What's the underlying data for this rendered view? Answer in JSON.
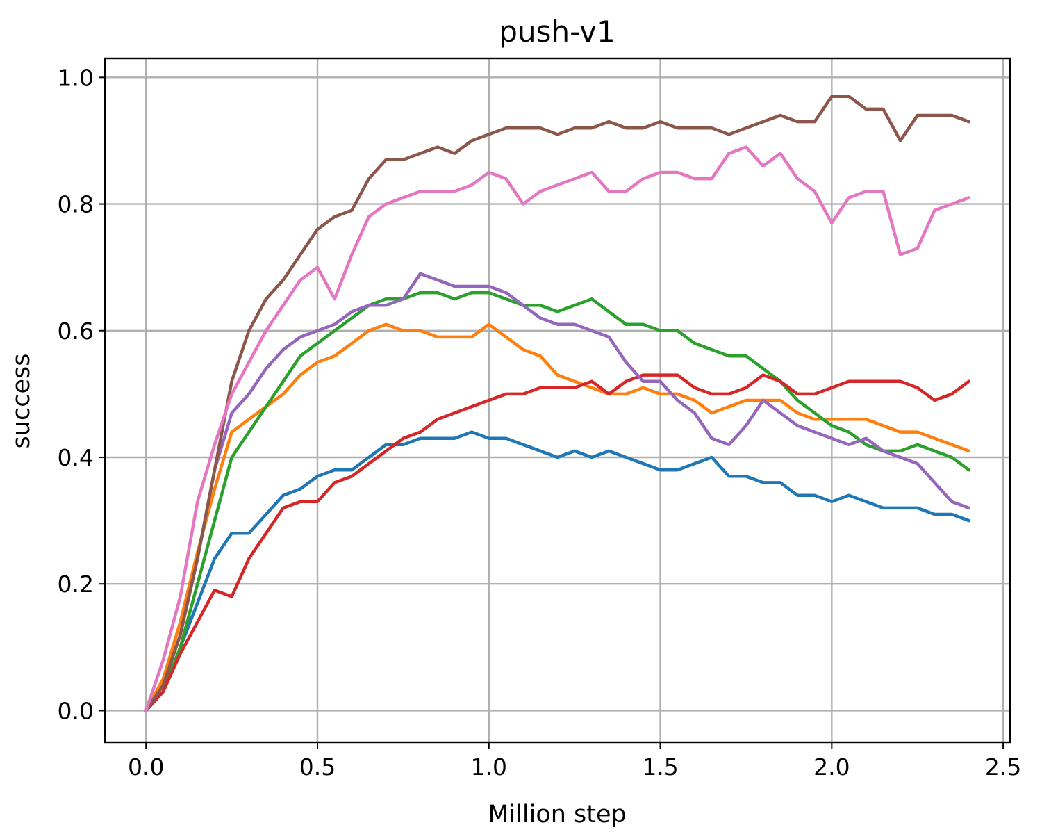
{
  "chart_data": {
    "type": "line",
    "title": "push-v1",
    "xlabel": "Million step",
    "ylabel": "success",
    "xlim": [
      -0.12,
      2.52
    ],
    "ylim": [
      -0.05,
      1.03
    ],
    "grid": true,
    "legend": "none",
    "xticks": [
      {
        "value": 0.0,
        "label": "0.0"
      },
      {
        "value": 0.5,
        "label": "0.5"
      },
      {
        "value": 1.0,
        "label": "1.0"
      },
      {
        "value": 1.5,
        "label": "1.5"
      },
      {
        "value": 2.0,
        "label": "2.0"
      },
      {
        "value": 2.5,
        "label": "2.5"
      }
    ],
    "yticks": [
      {
        "value": 0.0,
        "label": "0.0"
      },
      {
        "value": 0.2,
        "label": "0.2"
      },
      {
        "value": 0.4,
        "label": "0.4"
      },
      {
        "value": 0.6,
        "label": "0.6"
      },
      {
        "value": 0.8,
        "label": "0.8"
      },
      {
        "value": 1.0,
        "label": "1.0"
      }
    ],
    "x": [
      0.0,
      0.05,
      0.1,
      0.15,
      0.2,
      0.25,
      0.3,
      0.35,
      0.4,
      0.45,
      0.5,
      0.55,
      0.6,
      0.65,
      0.7,
      0.75,
      0.8,
      0.85,
      0.9,
      0.95,
      1.0,
      1.05,
      1.1,
      1.15,
      1.2,
      1.25,
      1.3,
      1.35,
      1.4,
      1.45,
      1.5,
      1.55,
      1.6,
      1.65,
      1.7,
      1.75,
      1.8,
      1.85,
      1.9,
      1.95,
      2.0,
      2.05,
      2.1,
      2.15,
      2.2,
      2.25,
      2.3,
      2.35,
      2.4
    ],
    "series": [
      {
        "color": "#1f77b4",
        "values": [
          0.0,
          0.03,
          0.1,
          0.17,
          0.24,
          0.28,
          0.28,
          0.31,
          0.34,
          0.35,
          0.37,
          0.38,
          0.38,
          0.4,
          0.42,
          0.42,
          0.43,
          0.43,
          0.43,
          0.44,
          0.43,
          0.43,
          0.42,
          0.41,
          0.4,
          0.41,
          0.4,
          0.41,
          0.4,
          0.39,
          0.38,
          0.38,
          0.39,
          0.4,
          0.37,
          0.37,
          0.36,
          0.36,
          0.34,
          0.34,
          0.33,
          0.34,
          0.33,
          0.32,
          0.32,
          0.32,
          0.31,
          0.31,
          0.3
        ]
      },
      {
        "color": "#ff7f0e",
        "values": [
          0.0,
          0.05,
          0.14,
          0.25,
          0.35,
          0.44,
          0.46,
          0.48,
          0.5,
          0.53,
          0.55,
          0.56,
          0.58,
          0.6,
          0.61,
          0.6,
          0.6,
          0.59,
          0.59,
          0.59,
          0.61,
          0.59,
          0.57,
          0.56,
          0.53,
          0.52,
          0.51,
          0.5,
          0.5,
          0.51,
          0.5,
          0.5,
          0.49,
          0.47,
          0.48,
          0.49,
          0.49,
          0.49,
          0.47,
          0.46,
          0.46,
          0.46,
          0.46,
          0.45,
          0.44,
          0.44,
          0.43,
          0.42,
          0.41
        ]
      },
      {
        "color": "#2ca02c",
        "values": [
          0.0,
          0.03,
          0.1,
          0.2,
          0.3,
          0.4,
          0.44,
          0.48,
          0.52,
          0.56,
          0.58,
          0.6,
          0.62,
          0.64,
          0.65,
          0.65,
          0.66,
          0.66,
          0.65,
          0.66,
          0.66,
          0.65,
          0.64,
          0.64,
          0.63,
          0.64,
          0.65,
          0.63,
          0.61,
          0.61,
          0.6,
          0.6,
          0.58,
          0.57,
          0.56,
          0.56,
          0.54,
          0.52,
          0.49,
          0.47,
          0.45,
          0.44,
          0.42,
          0.41,
          0.41,
          0.42,
          0.41,
          0.4,
          0.38
        ]
      },
      {
        "color": "#d62728",
        "values": [
          0.0,
          0.03,
          0.09,
          0.14,
          0.19,
          0.18,
          0.24,
          0.28,
          0.32,
          0.33,
          0.33,
          0.36,
          0.37,
          0.39,
          0.41,
          0.43,
          0.44,
          0.46,
          0.47,
          0.48,
          0.49,
          0.5,
          0.5,
          0.51,
          0.51,
          0.51,
          0.52,
          0.5,
          0.52,
          0.53,
          0.53,
          0.53,
          0.51,
          0.5,
          0.5,
          0.51,
          0.53,
          0.52,
          0.5,
          0.5,
          0.51,
          0.52,
          0.52,
          0.52,
          0.52,
          0.51,
          0.49,
          0.5,
          0.52
        ]
      },
      {
        "color": "#9467bd",
        "values": [
          0.0,
          0.04,
          0.12,
          0.24,
          0.38,
          0.47,
          0.5,
          0.54,
          0.57,
          0.59,
          0.6,
          0.61,
          0.63,
          0.64,
          0.64,
          0.65,
          0.69,
          0.68,
          0.67,
          0.67,
          0.67,
          0.66,
          0.64,
          0.62,
          0.61,
          0.61,
          0.6,
          0.59,
          0.55,
          0.52,
          0.52,
          0.49,
          0.47,
          0.43,
          0.42,
          0.45,
          0.49,
          0.47,
          0.45,
          0.44,
          0.43,
          0.42,
          0.43,
          0.41,
          0.4,
          0.39,
          0.36,
          0.33,
          0.32
        ]
      },
      {
        "color": "#8c564b",
        "values": [
          0.0,
          0.04,
          0.12,
          0.24,
          0.38,
          0.52,
          0.6,
          0.65,
          0.68,
          0.72,
          0.76,
          0.78,
          0.79,
          0.84,
          0.87,
          0.87,
          0.88,
          0.89,
          0.88,
          0.9,
          0.91,
          0.92,
          0.92,
          0.92,
          0.91,
          0.92,
          0.92,
          0.93,
          0.92,
          0.92,
          0.93,
          0.92,
          0.92,
          0.92,
          0.91,
          0.92,
          0.93,
          0.94,
          0.93,
          0.93,
          0.97,
          0.97,
          0.95,
          0.95,
          0.9,
          0.94,
          0.94,
          0.94,
          0.93
        ]
      },
      {
        "color": "#e377c2",
        "values": [
          0.0,
          0.08,
          0.18,
          0.33,
          0.42,
          0.5,
          0.55,
          0.6,
          0.64,
          0.68,
          0.7,
          0.65,
          0.72,
          0.78,
          0.8,
          0.81,
          0.82,
          0.82,
          0.82,
          0.83,
          0.85,
          0.84,
          0.8,
          0.82,
          0.83,
          0.84,
          0.85,
          0.82,
          0.82,
          0.84,
          0.85,
          0.85,
          0.84,
          0.84,
          0.88,
          0.89,
          0.86,
          0.88,
          0.84,
          0.82,
          0.77,
          0.81,
          0.82,
          0.82,
          0.72,
          0.73,
          0.79,
          0.8,
          0.81
        ]
      }
    ]
  }
}
